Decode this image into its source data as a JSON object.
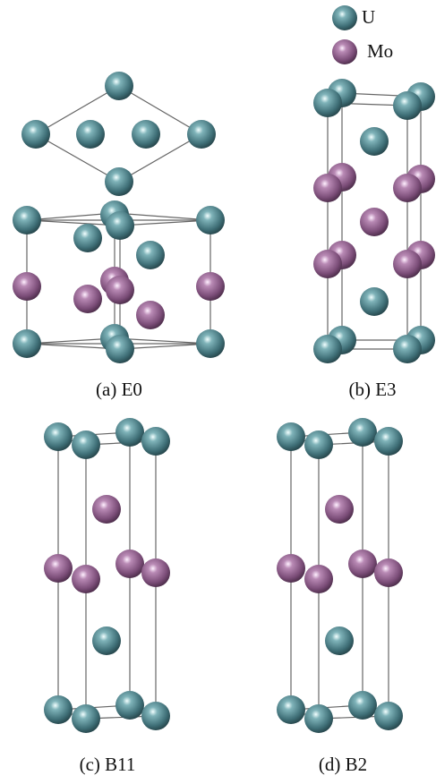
{
  "legend": [
    {
      "label": "U"
    },
    {
      "label": "Mo"
    }
  ],
  "panels": [
    {
      "caption": "(a) E0"
    },
    {
      "caption": "(b) E3"
    },
    {
      "caption": "(c) B11"
    },
    {
      "caption": "(d) B2"
    }
  ]
}
